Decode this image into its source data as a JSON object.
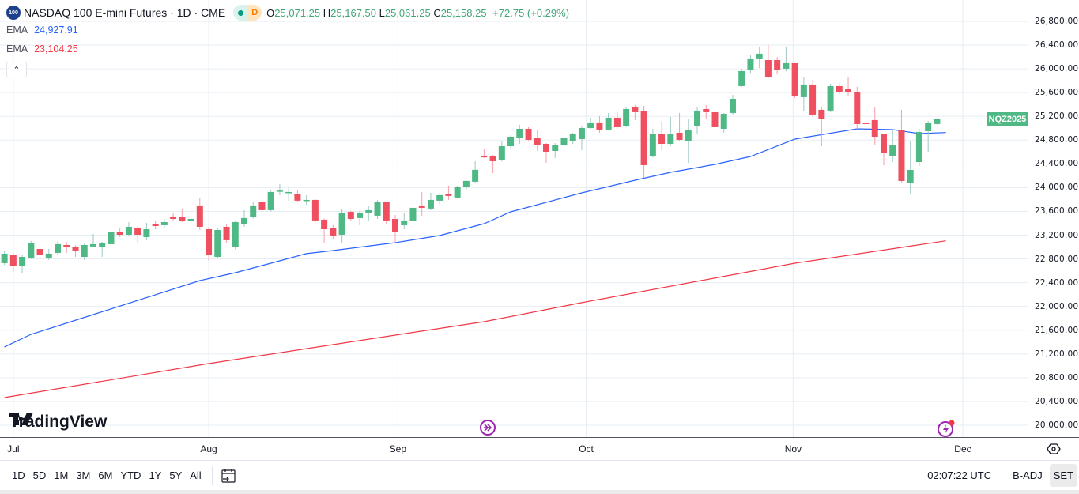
{
  "header": {
    "symbol_badge": "100",
    "title": "NASDAQ 100 E-mini Futures · 1D · CME",
    "status_letter": "D",
    "ohlc": {
      "o_label": "O",
      "o": "25,071.25",
      "h_label": "H",
      "h": "25,167.50",
      "l_label": "L",
      "l": "25,061.25",
      "c_label": "C",
      "c": "25,158.25",
      "change": "+72.75 (+0.29%)"
    },
    "indicators": [
      {
        "name": "EMA",
        "value": "24,927.91",
        "color": "#2962ff"
      },
      {
        "name": "EMA",
        "value": "23,104.25",
        "color": "#f23645"
      }
    ]
  },
  "price_tag": "NQZ2025",
  "logo_text": "TradingView",
  "colors": {
    "up": "#4fb985",
    "down": "#ef4f5f",
    "ema_fast": "#2962ff",
    "ema_slow": "#f23645",
    "grid": "#e6edf3"
  },
  "chart_data": {
    "type": "candlestick",
    "title": "NASDAQ 100 E-mini Futures · 1D · CME",
    "ylim": [
      19800,
      27159
    ],
    "xlim": [
      -0.5,
      115.2
    ],
    "y_ticks": [
      "26,800.00",
      "26,400.00",
      "26,000.00",
      "25,600.00",
      "25,200.00",
      "24,800.00",
      "24,400.00",
      "24,000.00",
      "23,600.00",
      "23,200.00",
      "22,800.00",
      "22,400.00",
      "22,000.00",
      "21,600.00",
      "21,200.00",
      "20,800.00",
      "20,400.00",
      "20,000.00"
    ],
    "y_tick_values": [
      26800,
      26400,
      26000,
      25600,
      25200,
      24800,
      24400,
      24000,
      23600,
      23200,
      22800,
      22400,
      22000,
      21600,
      21200,
      20800,
      20400,
      20000
    ],
    "x_ticks": [
      {
        "label": "Jul",
        "bar": 1
      },
      {
        "label": "Aug",
        "bar": 23
      },
      {
        "label": "Sep",
        "bar": 44.3
      },
      {
        "label": "Oct",
        "bar": 65.5
      },
      {
        "label": "Nov",
        "bar": 88.8
      },
      {
        "label": "Dec",
        "bar": 107.9
      }
    ],
    "ohlc_columns": [
      "open",
      "high",
      "low",
      "close"
    ],
    "candles": [
      [
        22728,
        22928,
        22700,
        22888
      ],
      [
        22861,
        22901,
        22582,
        22675
      ],
      [
        22675,
        22860,
        22568,
        22834
      ],
      [
        22821,
        23101,
        22800,
        23061
      ],
      [
        22967,
        23021,
        22768,
        22861
      ],
      [
        22821,
        22967,
        22780,
        22888
      ],
      [
        22901,
        23101,
        22861,
        23048
      ],
      [
        23034,
        23087,
        22901,
        22994
      ],
      [
        23008,
        23030,
        22834,
        22941
      ],
      [
        22834,
        23061,
        22781,
        23034
      ],
      [
        23008,
        23220,
        22994,
        23048
      ],
      [
        22994,
        23087,
        22834,
        23074
      ],
      [
        23048,
        23273,
        23021,
        23247
      ],
      [
        23247,
        23313,
        23167,
        23207
      ],
      [
        23207,
        23420,
        23190,
        23340
      ],
      [
        23327,
        23350,
        23074,
        23207
      ],
      [
        23167,
        23407,
        23114,
        23300
      ],
      [
        23393,
        23433,
        23300,
        23353
      ],
      [
        23367,
        23473,
        23327,
        23420
      ],
      [
        23513,
        23580,
        23433,
        23473
      ],
      [
        23500,
        23640,
        23420,
        23433
      ],
      [
        23433,
        23660,
        23340,
        23473
      ],
      [
        23700,
        23833,
        23287,
        23340
      ],
      [
        23300,
        23340,
        22768,
        22861
      ],
      [
        22834,
        23327,
        22808,
        23287
      ],
      [
        23340,
        23393,
        23074,
        23114
      ],
      [
        22994,
        23433,
        22960,
        23420
      ],
      [
        23393,
        23620,
        23340,
        23487
      ],
      [
        23500,
        23766,
        23480,
        23700
      ],
      [
        23753,
        23790,
        23580,
        23620
      ],
      [
        23620,
        23950,
        23600,
        23926
      ],
      [
        23935,
        24060,
        23873,
        23950
      ],
      [
        23926,
        24006,
        23780,
        23926
      ],
      [
        23886,
        23960,
        23753,
        23780
      ],
      [
        23793,
        23873,
        23713,
        23793
      ],
      [
        23793,
        23810,
        23420,
        23447
      ],
      [
        23460,
        23480,
        23074,
        23300
      ],
      [
        23313,
        23367,
        23140,
        23194
      ],
      [
        23207,
        23646,
        23074,
        23567
      ],
      [
        23593,
        23610,
        23433,
        23473
      ],
      [
        23487,
        23610,
        23367,
        23580
      ],
      [
        23580,
        23687,
        23433,
        23620
      ],
      [
        23527,
        23793,
        23473,
        23766
      ],
      [
        23753,
        23770,
        23393,
        23447
      ],
      [
        23473,
        23540,
        23074,
        23260
      ],
      [
        23367,
        23567,
        23300,
        23447
      ],
      [
        23433,
        23740,
        23420,
        23660
      ],
      [
        23687,
        23926,
        23527,
        23660
      ],
      [
        23647,
        23913,
        23620,
        23793
      ],
      [
        23780,
        23900,
        23713,
        23873
      ],
      [
        23886,
        24033,
        23793,
        23860
      ],
      [
        23833,
        24033,
        23813,
        24006
      ],
      [
        24006,
        24125,
        23960,
        24113
      ],
      [
        24100,
        24445,
        24080,
        24300
      ],
      [
        24530,
        24644,
        24498,
        24520
      ],
      [
        24524,
        24550,
        24245,
        24445
      ],
      [
        24471,
        24790,
        24440,
        24697
      ],
      [
        24697,
        24883,
        24644,
        24857
      ],
      [
        24830,
        25057,
        24737,
        24990
      ],
      [
        24990,
        25017,
        24790,
        24804
      ],
      [
        24830,
        24977,
        24617,
        24724
      ],
      [
        24737,
        24750,
        24418,
        24604
      ],
      [
        24617,
        24750,
        24498,
        24724
      ],
      [
        24710,
        24950,
        24690,
        24830
      ],
      [
        24790,
        24924,
        24737,
        24897
      ],
      [
        24817,
        25043,
        24630,
        25003
      ],
      [
        25003,
        25177,
        24990,
        25097
      ],
      [
        25097,
        25203,
        24924,
        24977
      ],
      [
        24977,
        25257,
        24960,
        25177
      ],
      [
        25177,
        25270,
        24990,
        25017
      ],
      [
        25043,
        25363,
        25020,
        25323
      ],
      [
        25350,
        25390,
        25137,
        25270
      ],
      [
        25283,
        25377,
        24165,
        24378
      ],
      [
        24524,
        24990,
        24504,
        24910
      ],
      [
        24910,
        25120,
        24630,
        24737
      ],
      [
        24737,
        25190,
        24700,
        24910
      ],
      [
        24924,
        25257,
        24777,
        24804
      ],
      [
        24777,
        25150,
        24417,
        24977
      ],
      [
        25043,
        25363,
        24900,
        25297
      ],
      [
        25323,
        25390,
        25150,
        25270
      ],
      [
        25270,
        25283,
        24790,
        25017
      ],
      [
        24990,
        25257,
        24924,
        25243
      ],
      [
        25257,
        25563,
        25230,
        25496
      ],
      [
        25709,
        26002,
        25696,
        25962
      ],
      [
        25975,
        26228,
        25930,
        26162
      ],
      [
        26162,
        26375,
        26015,
        26255
      ],
      [
        26148,
        26402,
        25842,
        25856
      ],
      [
        26148,
        26202,
        25909,
        25988
      ],
      [
        26002,
        26375,
        25960,
        26095
      ],
      [
        26095,
        26095,
        25509,
        25549
      ],
      [
        25523,
        25856,
        25283,
        25736
      ],
      [
        25736,
        25815,
        25190,
        25230
      ],
      [
        25310,
        25350,
        24697,
        25150
      ],
      [
        25297,
        25749,
        25270,
        25709
      ],
      [
        25709,
        25762,
        25563,
        25616
      ],
      [
        25656,
        25869,
        25543,
        25603
      ],
      [
        25616,
        25700,
        24990,
        25070
      ],
      [
        25090,
        25283,
        24618,
        25075
      ],
      [
        25137,
        25350,
        24724,
        24857
      ],
      [
        24897,
        24910,
        24378,
        24578
      ],
      [
        24524,
        24977,
        24431,
        24710
      ],
      [
        24963,
        25310,
        24072,
        24112
      ],
      [
        24085,
        24776,
        23900,
        24298
      ],
      [
        24431,
        24990,
        24364,
        24937
      ],
      [
        24950,
        25123,
        24604,
        25083
      ],
      [
        25071.25,
        25167.5,
        25061.25,
        25158.25
      ]
    ],
    "series": [
      {
        "name": "EMA (fast)",
        "color": "#2962ff",
        "points": [
          [
            0,
            21318
          ],
          [
            3,
            21530
          ],
          [
            10,
            21863
          ],
          [
            17,
            22196
          ],
          [
            22,
            22435
          ],
          [
            26,
            22568
          ],
          [
            31,
            22768
          ],
          [
            34,
            22888
          ],
          [
            37,
            22941
          ],
          [
            44,
            23074
          ],
          [
            49,
            23194
          ],
          [
            54,
            23393
          ],
          [
            57,
            23593
          ],
          [
            65,
            23912
          ],
          [
            71,
            24125
          ],
          [
            75,
            24258
          ],
          [
            80,
            24391
          ],
          [
            84,
            24524
          ],
          [
            89,
            24817
          ],
          [
            96,
            24990
          ],
          [
            100,
            24977
          ],
          [
            103,
            24910
          ],
          [
            106,
            24927.91
          ]
        ]
      },
      {
        "name": "EMA (slow)",
        "color": "#f23645",
        "points": [
          [
            0,
            20466
          ],
          [
            23,
            21038
          ],
          [
            44,
            21517
          ],
          [
            54,
            21743
          ],
          [
            65,
            22063
          ],
          [
            89,
            22728
          ],
          [
            106,
            23104.25
          ]
        ]
      }
    ],
    "last_price": 25158.25
  },
  "time_axis": {},
  "toolbar": {
    "ranges": [
      "1D",
      "5D",
      "1M",
      "3M",
      "6M",
      "YTD",
      "1Y",
      "5Y",
      "All"
    ],
    "clock": "02:07:22 UTC",
    "badj": "B-ADJ",
    "set": "SET"
  }
}
